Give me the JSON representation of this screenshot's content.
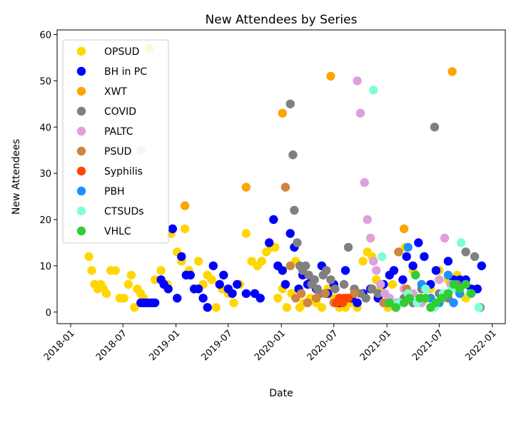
{
  "chart_data": {
    "type": "scatter",
    "title": "New Attendees by Series",
    "xlabel": "Date",
    "ylabel": "New Attendees",
    "x_is_date": true,
    "xlim": [
      "2017-11-15",
      "2022-02-15"
    ],
    "ylim": [
      -2.5,
      61
    ],
    "x_ticks": [
      "2018-01",
      "2018-07",
      "2019-01",
      "2019-07",
      "2020-01",
      "2020-07",
      "2021-01",
      "2021-07",
      "2022-01"
    ],
    "y_ticks": [
      0,
      10,
      20,
      30,
      40,
      50,
      60
    ],
    "grid": false,
    "legend_position": "upper-left",
    "series": [
      {
        "name": "OPSUD",
        "color": "#FFD700",
        "points": [
          [
            "2018-03-05",
            12
          ],
          [
            "2018-03-15",
            9
          ],
          [
            "2018-03-25",
            6
          ],
          [
            "2018-04-05",
            5
          ],
          [
            "2018-04-15",
            6
          ],
          [
            "2018-04-25",
            5
          ],
          [
            "2018-05-05",
            4
          ],
          [
            "2018-05-20",
            9
          ],
          [
            "2018-06-05",
            9
          ],
          [
            "2018-06-20",
            3
          ],
          [
            "2018-07-05",
            3
          ],
          [
            "2018-07-20",
            6
          ],
          [
            "2018-07-30",
            8
          ],
          [
            "2018-08-10",
            1
          ],
          [
            "2018-08-20",
            5
          ],
          [
            "2018-09-01",
            4
          ],
          [
            "2018-09-10",
            3
          ],
          [
            "2018-10-01",
            57
          ],
          [
            "2018-10-20",
            7
          ],
          [
            "2018-11-10",
            9
          ],
          [
            "2018-12-01",
            6
          ],
          [
            "2018-12-15",
            17
          ],
          [
            "2019-01-05",
            13
          ],
          [
            "2019-01-20",
            11
          ],
          [
            "2019-02-01",
            18
          ],
          [
            "2019-02-15",
            9
          ],
          [
            "2019-03-05",
            5
          ],
          [
            "2019-03-20",
            11
          ],
          [
            "2019-04-05",
            6
          ],
          [
            "2019-04-20",
            8
          ],
          [
            "2019-05-05",
            7
          ],
          [
            "2019-05-20",
            1
          ],
          [
            "2019-06-10",
            5
          ],
          [
            "2019-07-01",
            4
          ],
          [
            "2019-07-20",
            2
          ],
          [
            "2019-08-10",
            6
          ],
          [
            "2019-09-01",
            17
          ],
          [
            "2019-09-20",
            11
          ],
          [
            "2019-10-10",
            10
          ],
          [
            "2019-10-25",
            11
          ],
          [
            "2019-11-10",
            13
          ],
          [
            "2019-11-25",
            14
          ],
          [
            "2019-12-10",
            14
          ],
          [
            "2019-12-20",
            3
          ],
          [
            "2020-01-05",
            5
          ],
          [
            "2020-01-20",
            1
          ],
          [
            "2020-02-05",
            4
          ],
          [
            "2020-02-20",
            11
          ],
          [
            "2020-03-05",
            1
          ],
          [
            "2020-03-20",
            2
          ],
          [
            "2020-04-10",
            3
          ],
          [
            "2020-05-01",
            2
          ],
          [
            "2020-05-20",
            1
          ],
          [
            "2020-06-10",
            5
          ],
          [
            "2020-07-01",
            3
          ],
          [
            "2020-07-20",
            1
          ],
          [
            "2020-08-10",
            1
          ],
          [
            "2020-09-01",
            2
          ],
          [
            "2020-09-20",
            1
          ],
          [
            "2020-10-10",
            11
          ],
          [
            "2020-10-25",
            13
          ],
          [
            "2020-11-10",
            12
          ],
          [
            "2020-11-25",
            7
          ],
          [
            "2020-12-10",
            5
          ],
          [
            "2021-01-05",
            1
          ],
          [
            "2021-01-20",
            6
          ],
          [
            "2021-02-10",
            13
          ],
          [
            "2021-03-05",
            14
          ],
          [
            "2021-04-01",
            9
          ],
          [
            "2021-05-01",
            3
          ],
          [
            "2021-06-01",
            5
          ],
          [
            "2021-07-01",
            9
          ],
          [
            "2021-08-01",
            7
          ],
          [
            "2021-09-01",
            8
          ],
          [
            "2021-10-01",
            3
          ]
        ]
      },
      {
        "name": "BH in PC",
        "color": "#0000FF",
        "points": [
          [
            "2018-09-01",
            2
          ],
          [
            "2018-09-10",
            2
          ],
          [
            "2018-09-20",
            2
          ],
          [
            "2018-10-01",
            2
          ],
          [
            "2018-10-10",
            2
          ],
          [
            "2018-10-20",
            2
          ],
          [
            "2018-11-10",
            7
          ],
          [
            "2018-11-20",
            6
          ],
          [
            "2018-12-05",
            5
          ],
          [
            "2018-12-20",
            18
          ],
          [
            "2019-01-05",
            3
          ],
          [
            "2019-01-20",
            12
          ],
          [
            "2019-02-05",
            8
          ],
          [
            "2019-02-20",
            8
          ],
          [
            "2019-03-05",
            5
          ],
          [
            "2019-03-20",
            5
          ],
          [
            "2019-04-05",
            3
          ],
          [
            "2019-04-20",
            1
          ],
          [
            "2019-05-10",
            10
          ],
          [
            "2019-06-01",
            6
          ],
          [
            "2019-06-15",
            8
          ],
          [
            "2019-07-01",
            5
          ],
          [
            "2019-07-15",
            4
          ],
          [
            "2019-08-01",
            6
          ],
          [
            "2019-09-01",
            4
          ],
          [
            "2019-10-01",
            4
          ],
          [
            "2019-10-20",
            3
          ],
          [
            "2019-11-20",
            15
          ],
          [
            "2019-12-05",
            20
          ],
          [
            "2019-12-20",
            10
          ],
          [
            "2020-01-05",
            9
          ],
          [
            "2020-01-15",
            6
          ],
          [
            "2020-02-01",
            17
          ],
          [
            "2020-02-15",
            14
          ],
          [
            "2020-03-01",
            5
          ],
          [
            "2020-03-15",
            8
          ],
          [
            "2020-04-01",
            6
          ],
          [
            "2020-04-15",
            7
          ],
          [
            "2020-05-01",
            5
          ],
          [
            "2020-05-20",
            10
          ],
          [
            "2020-06-10",
            4
          ],
          [
            "2020-07-01",
            6
          ],
          [
            "2020-07-20",
            2
          ],
          [
            "2020-08-10",
            9
          ],
          [
            "2020-09-01",
            3
          ],
          [
            "2020-09-20",
            2
          ],
          [
            "2020-10-10",
            4
          ],
          [
            "2020-11-05",
            5
          ],
          [
            "2020-12-01",
            3
          ],
          [
            "2020-12-20",
            6
          ],
          [
            "2021-01-10",
            8
          ],
          [
            "2021-01-25",
            9
          ],
          [
            "2021-02-10",
            2
          ],
          [
            "2021-02-25",
            7
          ],
          [
            "2021-03-10",
            12
          ],
          [
            "2021-04-01",
            10
          ],
          [
            "2021-04-20",
            15
          ],
          [
            "2021-05-10",
            12
          ],
          [
            "2021-06-01",
            6
          ],
          [
            "2021-06-20",
            9
          ],
          [
            "2021-07-10",
            3
          ],
          [
            "2021-08-01",
            11
          ],
          [
            "2021-08-20",
            7
          ],
          [
            "2021-09-10",
            7
          ],
          [
            "2021-10-01",
            7
          ],
          [
            "2021-10-20",
            5
          ],
          [
            "2021-11-10",
            5
          ],
          [
            "2021-11-25",
            10
          ]
        ]
      },
      {
        "name": "XWT",
        "color": "#FFA500",
        "points": [
          [
            "2019-02-01",
            23
          ],
          [
            "2019-09-01",
            27
          ],
          [
            "2020-01-05",
            43
          ],
          [
            "2020-06-20",
            51
          ],
          [
            "2021-03-01",
            18
          ],
          [
            "2021-08-15",
            52
          ]
        ]
      },
      {
        "name": "COVID",
        "color": "#808080",
        "points": [
          [
            "2020-02-01",
            45
          ],
          [
            "2020-02-10",
            34
          ],
          [
            "2020-02-15",
            22
          ],
          [
            "2020-02-25",
            15
          ],
          [
            "2020-03-05",
            10
          ],
          [
            "2020-03-15",
            9
          ],
          [
            "2020-03-25",
            10
          ],
          [
            "2020-04-05",
            8
          ],
          [
            "2020-04-15",
            6
          ],
          [
            "2020-04-25",
            7
          ],
          [
            "2020-05-05",
            5
          ],
          [
            "2020-05-15",
            4
          ],
          [
            "2020-05-25",
            8
          ],
          [
            "2020-06-05",
            9
          ],
          [
            "2020-06-20",
            7
          ],
          [
            "2020-07-05",
            5
          ],
          [
            "2020-07-20",
            3
          ],
          [
            "2020-08-05",
            6
          ],
          [
            "2020-08-20",
            14
          ],
          [
            "2020-09-10",
            5
          ],
          [
            "2020-10-01",
            4
          ],
          [
            "2020-10-20",
            3
          ],
          [
            "2020-11-10",
            5
          ],
          [
            "2020-12-01",
            4
          ],
          [
            "2021-01-01",
            2
          ],
          [
            "2021-02-01",
            1
          ],
          [
            "2021-03-01",
            3
          ],
          [
            "2021-04-01",
            2
          ],
          [
            "2021-05-01",
            5
          ],
          [
            "2021-06-15",
            40
          ],
          [
            "2021-07-01",
            4
          ],
          [
            "2021-08-01",
            3
          ],
          [
            "2021-09-01",
            6
          ],
          [
            "2021-10-01",
            13
          ],
          [
            "2021-11-01",
            12
          ],
          [
            "2021-11-20",
            1
          ]
        ]
      },
      {
        "name": "PALTC",
        "color": "#DDA0DD",
        "points": [
          [
            "2018-09-01",
            35
          ],
          [
            "2020-09-20",
            50
          ],
          [
            "2020-10-01",
            43
          ],
          [
            "2020-10-15",
            28
          ],
          [
            "2020-10-25",
            20
          ],
          [
            "2020-11-05",
            16
          ],
          [
            "2020-11-15",
            11
          ],
          [
            "2020-11-25",
            9
          ],
          [
            "2020-12-10",
            6
          ],
          [
            "2020-12-25",
            4
          ],
          [
            "2021-01-10",
            3
          ],
          [
            "2021-02-01",
            2
          ],
          [
            "2021-03-01",
            5
          ],
          [
            "2021-04-01",
            4
          ],
          [
            "2021-05-01",
            2
          ],
          [
            "2021-06-01",
            3
          ],
          [
            "2021-07-01",
            7
          ],
          [
            "2021-07-20",
            16
          ],
          [
            "2021-08-10",
            6
          ],
          [
            "2021-09-01",
            5
          ]
        ]
      },
      {
        "name": "PSUD",
        "color": "#CD853F",
        "points": [
          [
            "2020-01-15",
            27
          ],
          [
            "2020-02-01",
            10
          ],
          [
            "2020-02-20",
            3
          ],
          [
            "2020-03-10",
            4
          ],
          [
            "2020-04-01",
            2
          ],
          [
            "2020-05-01",
            3
          ],
          [
            "2020-06-01",
            4
          ],
          [
            "2020-07-01",
            2
          ],
          [
            "2020-08-01",
            3
          ],
          [
            "2020-09-10",
            4
          ],
          [
            "2020-12-20",
            2
          ],
          [
            "2021-02-10",
            13
          ],
          [
            "2021-03-10",
            5
          ]
        ]
      },
      {
        "name": "Syphilis",
        "color": "#FF4500",
        "points": [
          [
            "2020-07-10",
            2
          ],
          [
            "2020-07-20",
            3
          ],
          [
            "2020-08-01",
            2
          ],
          [
            "2020-08-10",
            3
          ],
          [
            "2020-08-20",
            3
          ]
        ]
      },
      {
        "name": "PBH",
        "color": "#1E90FF",
        "points": [
          [
            "2021-03-15",
            14
          ],
          [
            "2021-05-01",
            6
          ],
          [
            "2021-06-01",
            3
          ],
          [
            "2021-07-01",
            2
          ],
          [
            "2021-08-01",
            8
          ],
          [
            "2021-08-20",
            2
          ],
          [
            "2021-09-10",
            4
          ]
        ]
      },
      {
        "name": "CTSUDs",
        "color": "#7FFFD4",
        "points": [
          [
            "2020-11-15",
            48
          ],
          [
            "2020-12-15",
            12
          ],
          [
            "2021-01-15",
            2
          ],
          [
            "2021-02-15",
            2
          ],
          [
            "2021-03-15",
            4
          ],
          [
            "2021-04-15",
            2
          ],
          [
            "2021-05-15",
            5
          ],
          [
            "2021-06-15",
            1
          ],
          [
            "2021-07-15",
            4
          ],
          [
            "2021-08-15",
            5
          ],
          [
            "2021-09-15",
            15
          ],
          [
            "2021-10-15",
            4
          ],
          [
            "2021-11-15",
            1
          ]
        ]
      },
      {
        "name": "VHLC",
        "color": "#32CD32",
        "points": [
          [
            "2021-01-10",
            2
          ],
          [
            "2021-02-01",
            1
          ],
          [
            "2021-03-01",
            2
          ],
          [
            "2021-03-20",
            3
          ],
          [
            "2021-04-10",
            8
          ],
          [
            "2021-04-25",
            3
          ],
          [
            "2021-05-15",
            3
          ],
          [
            "2021-06-01",
            1
          ],
          [
            "2021-06-20",
            2
          ],
          [
            "2021-07-10",
            3
          ],
          [
            "2021-08-01",
            4
          ],
          [
            "2021-08-20",
            6
          ],
          [
            "2021-09-10",
            5
          ],
          [
            "2021-10-01",
            6
          ],
          [
            "2021-10-20",
            4
          ]
        ]
      }
    ]
  }
}
